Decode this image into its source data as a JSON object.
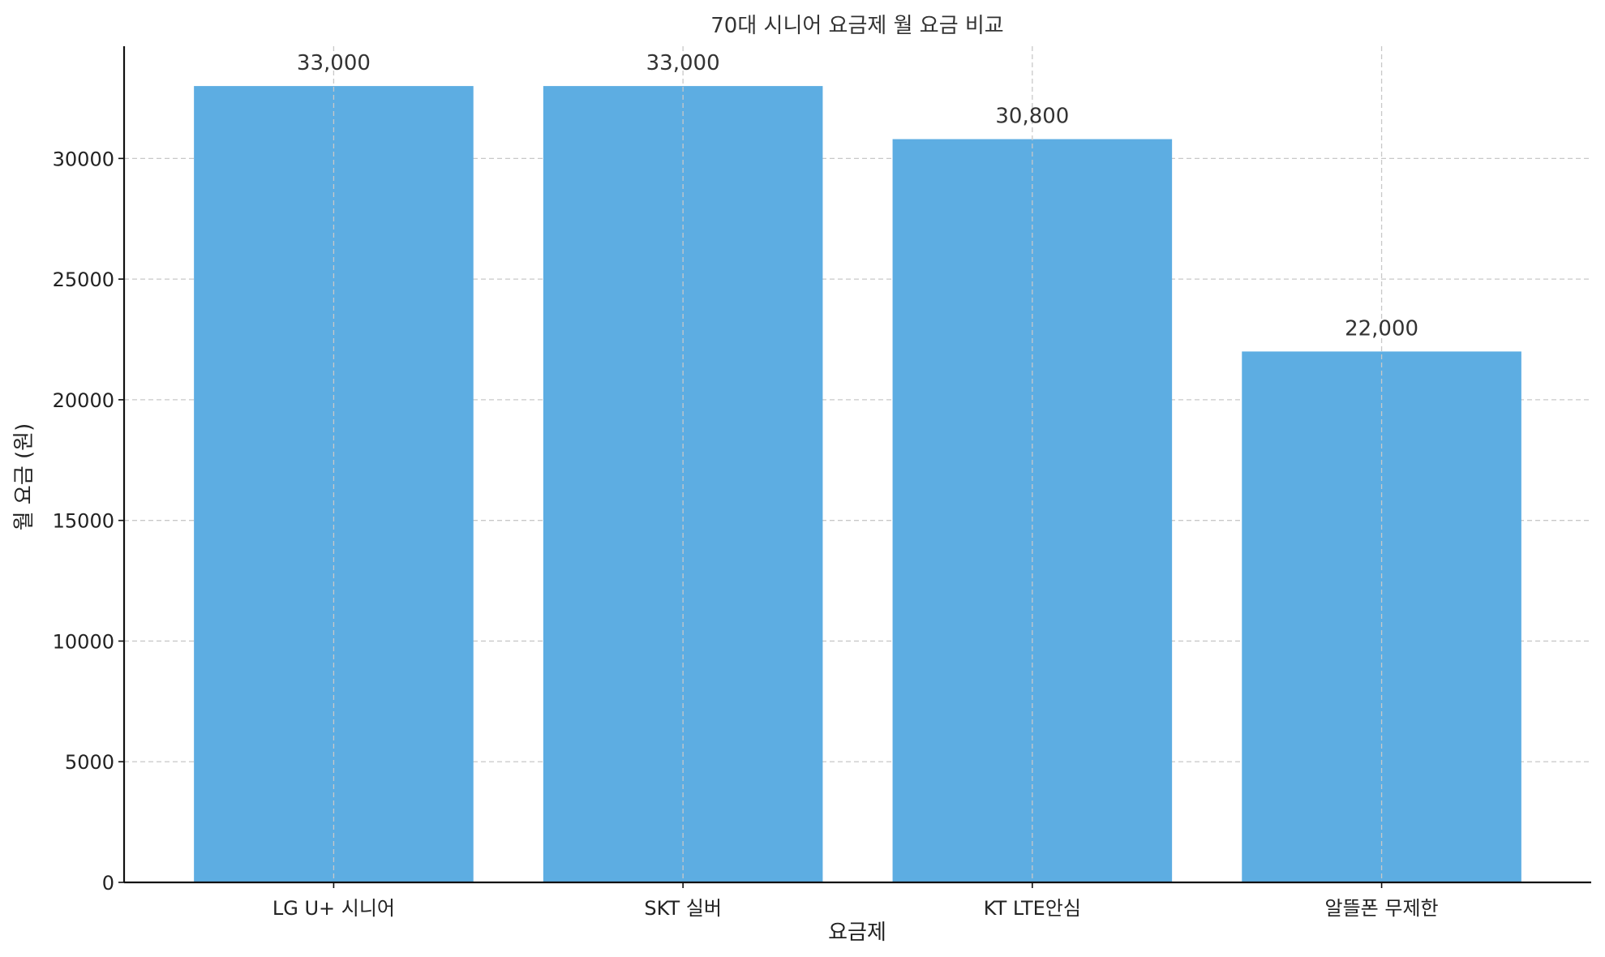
{
  "chart_data": {
    "type": "bar",
    "title": "70대 시니어 요금제 월 요금 비교",
    "xlabel": "요금제",
    "ylabel": "월 요금 (원)",
    "categories": [
      "LG U+ 시니어",
      "SKT 실버",
      "KT LTE안심",
      "알뜰폰 무제한"
    ],
    "values": [
      33000,
      33000,
      30800,
      22000
    ],
    "data_labels": [
      "33,000",
      "33,000",
      "30,800",
      "22,000"
    ],
    "yticks": [
      0,
      5000,
      10000,
      15000,
      20000,
      25000,
      30000
    ],
    "ytick_labels": [
      "0",
      "5000",
      "10000",
      "15000",
      "20000",
      "25000",
      "30000"
    ],
    "ylim": [
      0,
      34650
    ],
    "grid": true,
    "bar_color": "#5dade2"
  }
}
